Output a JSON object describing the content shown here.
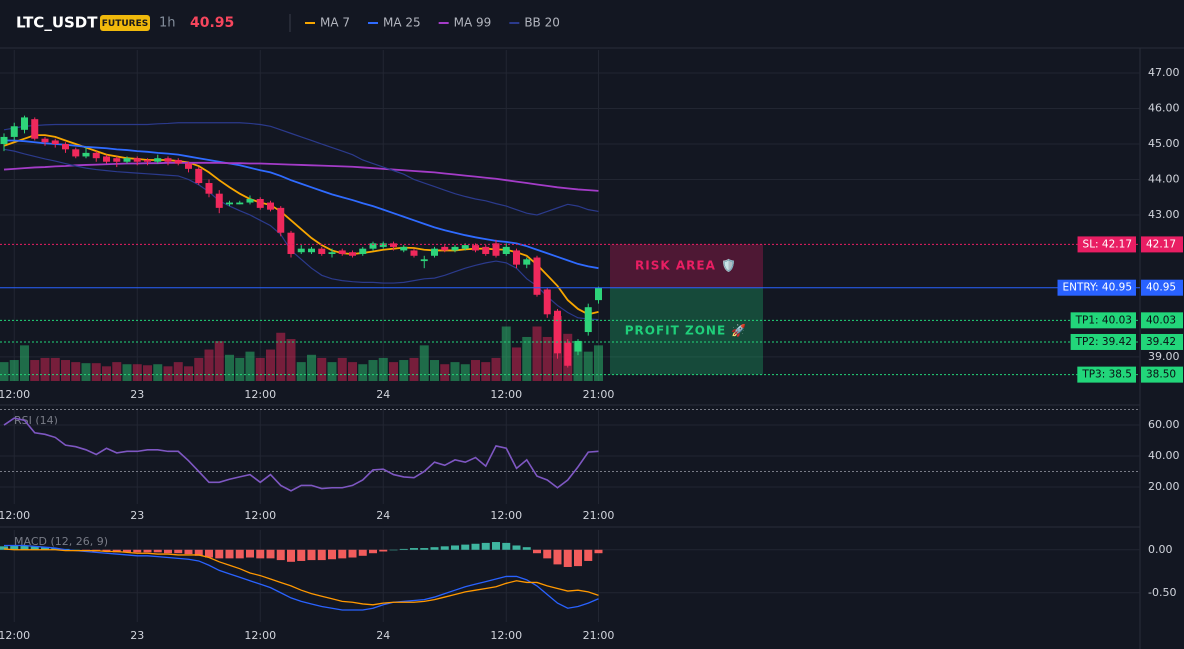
{
  "header": {
    "symbol": "LTC_USDT",
    "badge": "FUTURES",
    "interval": "1h",
    "price": 40.95
  },
  "chart_data": [
    {
      "type": "candlestick",
      "categories": [
        null,
        "12:00",
        null,
        null,
        null,
        null,
        null,
        null,
        null,
        null,
        null,
        null,
        null,
        "23",
        null,
        null,
        null,
        null,
        null,
        null,
        null,
        null,
        null,
        null,
        null,
        "12:00",
        null,
        null,
        null,
        null,
        null,
        null,
        null,
        null,
        null,
        null,
        null,
        "24",
        null,
        null,
        null,
        null,
        null,
        null,
        null,
        null,
        null,
        null,
        null,
        "12:00",
        null,
        null,
        null,
        null,
        null,
        null,
        null,
        null,
        "21:00"
      ],
      "open": [
        45.0,
        45.2,
        45.4,
        45.7,
        45.15,
        45.1,
        45.0,
        44.85,
        44.65,
        44.75,
        44.65,
        44.6,
        44.5,
        44.6,
        44.55,
        44.5,
        44.6,
        44.55,
        44.45,
        44.3,
        43.9,
        43.6,
        43.3,
        43.3,
        43.35,
        43.45,
        43.35,
        43.2,
        42.5,
        41.95,
        41.95,
        42.05,
        41.9,
        42.0,
        41.95,
        41.9,
        42.05,
        42.1,
        42.2,
        42.0,
        42.0,
        41.7,
        41.85,
        42.1,
        42.0,
        42.05,
        42.15,
        42.1,
        42.2,
        41.9,
        42.0,
        41.6,
        41.8,
        40.9,
        40.3,
        39.4,
        39.15,
        39.7,
        40.6
      ],
      "high": [
        45.3,
        45.6,
        45.8,
        45.75,
        45.2,
        45.15,
        45.05,
        44.9,
        44.9,
        44.8,
        44.7,
        44.65,
        44.65,
        44.65,
        44.6,
        44.7,
        44.65,
        44.6,
        44.5,
        44.35,
        44.0,
        43.7,
        43.4,
        43.4,
        43.55,
        43.5,
        43.4,
        43.25,
        42.55,
        42.15,
        42.1,
        42.1,
        42.05,
        42.05,
        42.0,
        42.1,
        42.25,
        42.25,
        42.25,
        42.15,
        42.05,
        41.85,
        42.1,
        42.15,
        42.15,
        42.2,
        42.2,
        42.15,
        42.3,
        42.2,
        42.05,
        41.8,
        41.85,
        40.95,
        40.35,
        39.5,
        39.5,
        40.5,
        40.98
      ],
      "low": [
        44.8,
        45.1,
        45.3,
        45.1,
        44.95,
        44.9,
        44.75,
        44.6,
        44.6,
        44.5,
        44.45,
        44.35,
        44.45,
        44.4,
        44.4,
        44.45,
        44.4,
        44.4,
        44.2,
        43.85,
        43.5,
        43.05,
        43.25,
        43.3,
        43.3,
        43.15,
        43.1,
        42.4,
        41.8,
        41.9,
        41.9,
        41.85,
        41.8,
        41.85,
        41.8,
        41.85,
        42.0,
        42.05,
        42.0,
        41.95,
        41.8,
        41.5,
        41.8,
        41.95,
        41.95,
        42.0,
        41.95,
        41.85,
        41.8,
        41.85,
        41.5,
        41.5,
        40.7,
        40.1,
        38.95,
        38.7,
        39.05,
        39.6,
        40.5
      ],
      "close": [
        45.2,
        45.5,
        45.75,
        45.15,
        45.05,
        45.0,
        44.85,
        44.65,
        44.75,
        44.6,
        44.5,
        44.5,
        44.6,
        44.5,
        44.5,
        44.6,
        44.5,
        44.45,
        44.3,
        43.9,
        43.6,
        43.2,
        43.35,
        43.35,
        43.45,
        43.2,
        43.15,
        42.5,
        41.9,
        42.05,
        42.05,
        41.9,
        41.95,
        41.9,
        41.85,
        42.05,
        42.2,
        42.2,
        42.1,
        42.1,
        41.85,
        41.75,
        42.05,
        42.0,
        42.1,
        42.15,
        42.0,
        41.9,
        41.85,
        42.1,
        41.6,
        41.75,
        40.75,
        40.2,
        39.1,
        38.75,
        39.45,
        40.4,
        40.95
      ],
      "volume": [
        18,
        20,
        34,
        20,
        22,
        22,
        20,
        18,
        17,
        17,
        14,
        18,
        16,
        16,
        15,
        16,
        14,
        18,
        14,
        22,
        30,
        38,
        25,
        22,
        28,
        22,
        30,
        46,
        40,
        18,
        25,
        22,
        18,
        22,
        18,
        16,
        20,
        22,
        18,
        20,
        22,
        34,
        20,
        16,
        18,
        16,
        20,
        18,
        22,
        52,
        32,
        42,
        52,
        42,
        62,
        45,
        38,
        28,
        34
      ],
      "up_color": "#2ed47a",
      "down_color": "#f0295c",
      "series": [
        {
          "name": "MA 7",
          "color": "#f7a600",
          "values": [
            44.95,
            45.05,
            45.15,
            45.25,
            45.25,
            45.2,
            45.1,
            45.0,
            44.9,
            44.8,
            44.7,
            44.65,
            44.6,
            44.58,
            44.55,
            44.55,
            44.55,
            44.52,
            44.48,
            44.38,
            44.2,
            43.98,
            43.78,
            43.6,
            43.45,
            43.35,
            43.28,
            43.1,
            42.85,
            42.6,
            42.35,
            42.15,
            42.0,
            41.92,
            41.9,
            41.93,
            41.97,
            42.02,
            42.05,
            42.08,
            42.07,
            42.02,
            42.0,
            42.0,
            42.0,
            42.03,
            42.05,
            42.05,
            42.03,
            42.02,
            41.95,
            41.85,
            41.6,
            41.3,
            41.0,
            40.6,
            40.35,
            40.2,
            40.27
          ]
        },
        {
          "name": "MA 25",
          "color": "#2f6bff",
          "values": [
            45.1,
            45.1,
            45.08,
            45.05,
            45.02,
            45.0,
            44.98,
            44.95,
            44.92,
            44.9,
            44.88,
            44.85,
            44.83,
            44.8,
            44.78,
            44.75,
            44.73,
            44.7,
            44.65,
            44.6,
            44.55,
            44.5,
            44.45,
            44.4,
            44.33,
            44.26,
            44.2,
            44.1,
            43.98,
            43.88,
            43.78,
            43.68,
            43.58,
            43.5,
            43.42,
            43.33,
            43.25,
            43.15,
            43.05,
            42.95,
            42.85,
            42.75,
            42.65,
            42.57,
            42.5,
            42.43,
            42.37,
            42.32,
            42.27,
            42.24,
            42.2,
            42.12,
            42.02,
            41.92,
            41.82,
            41.72,
            41.62,
            41.55,
            41.5
          ]
        },
        {
          "name": "MA 99",
          "color": "#a43cc8",
          "values": [
            44.28,
            44.3,
            44.32,
            44.34,
            44.35,
            44.37,
            44.38,
            44.4,
            44.41,
            44.42,
            44.43,
            44.44,
            44.45,
            44.45,
            44.46,
            44.46,
            44.47,
            44.47,
            44.47,
            44.47,
            44.47,
            44.47,
            44.46,
            44.46,
            44.45,
            44.45,
            44.44,
            44.43,
            44.42,
            44.41,
            44.4,
            44.39,
            44.38,
            44.37,
            44.36,
            44.34,
            44.32,
            44.3,
            44.28,
            44.26,
            44.24,
            44.22,
            44.2,
            44.17,
            44.14,
            44.11,
            44.08,
            44.05,
            44.02,
            43.98,
            43.94,
            43.9,
            43.86,
            43.82,
            43.78,
            43.75,
            43.72,
            43.7,
            43.68
          ]
        },
        {
          "name": "BB 20",
          "color": "#2b3a8c",
          "upper": [
            45.4,
            45.45,
            45.5,
            45.52,
            45.54,
            45.55,
            45.55,
            45.55,
            45.55,
            45.55,
            45.55,
            45.55,
            45.55,
            45.55,
            45.55,
            45.57,
            45.58,
            45.6,
            45.6,
            45.6,
            45.6,
            45.6,
            45.6,
            45.6,
            45.58,
            45.55,
            45.5,
            45.4,
            45.3,
            45.2,
            45.1,
            45.0,
            44.9,
            44.8,
            44.7,
            44.55,
            44.45,
            44.35,
            44.25,
            44.15,
            44.0,
            43.9,
            43.8,
            43.7,
            43.6,
            43.52,
            43.45,
            43.4,
            43.32,
            43.25,
            43.15,
            43.05,
            43.0,
            43.1,
            43.2,
            43.3,
            43.25,
            43.15,
            43.1
          ],
          "lower": [
            44.85,
            44.8,
            44.72,
            44.65,
            44.58,
            44.52,
            44.45,
            44.38,
            44.32,
            44.28,
            44.25,
            44.22,
            44.2,
            44.18,
            44.16,
            44.14,
            44.12,
            44.1,
            44.0,
            43.85,
            43.65,
            43.4,
            43.25,
            43.12,
            43.0,
            42.85,
            42.7,
            42.45,
            42.0,
            41.75,
            41.5,
            41.3,
            41.2,
            41.15,
            41.12,
            41.1,
            41.1,
            41.08,
            41.08,
            41.1,
            41.15,
            41.2,
            41.22,
            41.3,
            41.4,
            41.5,
            41.58,
            41.65,
            41.7,
            41.65,
            41.5,
            41.2,
            41.0,
            40.7,
            40.45,
            40.25,
            40.1,
            40.07,
            40.05
          ]
        }
      ],
      "levels": [
        {
          "name": "SL: 42.17",
          "value": 42.17,
          "color": "#e91e63",
          "text_color": "#ffffff",
          "style": "dotted"
        },
        {
          "name": "ENTRY: 40.95",
          "value": 40.95,
          "color": "#2962ff",
          "text_color": "#ffffff",
          "style": "solid"
        },
        {
          "name": "TP1: 40.03",
          "value": 40.03,
          "color": "#22d67a",
          "text_color": "#0b0e14",
          "style": "dotted"
        },
        {
          "name": "TP2: 39.42",
          "value": 39.42,
          "color": "#22d67a",
          "text_color": "#0b0e14",
          "style": "dotted"
        },
        {
          "name": "TP3: 38.5",
          "value": 38.5,
          "value_label": "38.50",
          "color": "#22d67a",
          "text_color": "#0b0e14",
          "style": "dotted"
        }
      ],
      "zones": [
        {
          "label": "RISK AREA 🛡️",
          "from": 42.17,
          "to": 40.95,
          "color": "#e91e63"
        },
        {
          "label": "PROFIT ZONE 🚀",
          "from": 40.95,
          "to": 38.5,
          "color": "#1fcf7a"
        }
      ],
      "ylim": [
        38.32,
        47.65
      ],
      "yticks": [
        {
          "value": 47,
          "label": "47.00"
        },
        {
          "value": 46,
          "label": "46.00"
        },
        {
          "value": 45,
          "label": "45.00"
        },
        {
          "value": 44,
          "label": "44.00"
        },
        {
          "value": 43,
          "label": "43.00"
        },
        {
          "value": 39,
          "label": "39.00"
        }
      ],
      "grid": true
    },
    {
      "type": "line",
      "label": "RSI (14)",
      "categories": [
        null,
        "12:00",
        null,
        null,
        null,
        null,
        null,
        null,
        null,
        null,
        null,
        null,
        null,
        "23",
        null,
        null,
        null,
        null,
        null,
        null,
        null,
        null,
        null,
        null,
        null,
        "12:00",
        null,
        null,
        null,
        null,
        null,
        null,
        null,
        null,
        null,
        null,
        null,
        "24",
        null,
        null,
        null,
        null,
        null,
        null,
        null,
        null,
        null,
        null,
        null,
        "12:00",
        null,
        null,
        null,
        null,
        null,
        null,
        null,
        null,
        "21:00"
      ],
      "series": [
        {
          "color": "#7e57c2",
          "values": [
            60,
            64.5,
            63,
            55,
            54,
            52,
            47,
            46,
            44,
            41,
            45,
            42,
            43,
            43,
            44,
            44,
            43,
            43,
            37,
            30,
            23,
            23,
            25,
            26.5,
            28,
            23,
            28,
            21,
            17.5,
            21,
            21,
            19,
            19.5,
            19.5,
            21,
            24.5,
            31,
            31.5,
            28,
            26.5,
            26,
            30,
            36,
            34,
            37.5,
            36,
            39,
            33.5,
            46.5,
            45,
            32,
            37.5,
            27,
            24.5,
            19.5,
            24.5,
            33,
            42.5,
            43
          ]
        }
      ],
      "levels": [
        70,
        30
      ],
      "ylim": [
        9,
        71
      ],
      "yticks": [
        {
          "value": 60,
          "label": "60.00"
        },
        {
          "value": 40,
          "label": "40.00"
        },
        {
          "value": 20,
          "label": "20.00"
        }
      ],
      "grid": true
    },
    {
      "type": "macd",
      "label": "MACD (12, 26, 9)",
      "categories": [
        null,
        "12:00",
        null,
        null,
        null,
        null,
        null,
        null,
        null,
        null,
        null,
        null,
        null,
        "23",
        null,
        null,
        null,
        null,
        null,
        null,
        null,
        null,
        null,
        null,
        null,
        "12:00",
        null,
        null,
        null,
        null,
        null,
        null,
        null,
        null,
        null,
        null,
        null,
        "24",
        null,
        null,
        null,
        null,
        null,
        null,
        null,
        null,
        null,
        null,
        null,
        "12:00",
        null,
        null,
        null,
        null,
        null,
        null,
        null,
        null,
        "21:00"
      ],
      "histogram": [
        0.04,
        0.05,
        0.05,
        0.04,
        0.03,
        0.02,
        0.01,
        0.0,
        -0.01,
        -0.02,
        -0.02,
        -0.03,
        -0.03,
        -0.03,
        -0.03,
        -0.03,
        -0.04,
        -0.04,
        -0.05,
        -0.07,
        -0.09,
        -0.1,
        -0.1,
        -0.1,
        -0.09,
        -0.1,
        -0.1,
        -0.12,
        -0.14,
        -0.13,
        -0.12,
        -0.12,
        -0.11,
        -0.1,
        -0.09,
        -0.07,
        -0.04,
        -0.02,
        0.0,
        0.01,
        0.02,
        0.02,
        0.03,
        0.04,
        0.05,
        0.06,
        0.07,
        0.08,
        0.09,
        0.08,
        0.05,
        0.03,
        -0.04,
        -0.1,
        -0.17,
        -0.2,
        -0.19,
        -0.13,
        -0.04
      ],
      "macd": [
        0.05,
        0.05,
        0.05,
        0.04,
        0.03,
        0.02,
        0.0,
        -0.01,
        -0.02,
        -0.03,
        -0.04,
        -0.05,
        -0.06,
        -0.07,
        -0.07,
        -0.08,
        -0.09,
        -0.1,
        -0.11,
        -0.13,
        -0.18,
        -0.24,
        -0.28,
        -0.32,
        -0.36,
        -0.4,
        -0.44,
        -0.5,
        -0.56,
        -0.6,
        -0.63,
        -0.66,
        -0.68,
        -0.7,
        -0.7,
        -0.7,
        -0.68,
        -0.64,
        -0.61,
        -0.6,
        -0.59,
        -0.58,
        -0.55,
        -0.51,
        -0.47,
        -0.43,
        -0.4,
        -0.37,
        -0.34,
        -0.31,
        -0.31,
        -0.35,
        -0.42,
        -0.52,
        -0.62,
        -0.68,
        -0.66,
        -0.62,
        -0.57
      ],
      "signal": [
        0.01,
        0.0,
        0.0,
        0.0,
        0.0,
        0.0,
        -0.01,
        -0.01,
        -0.01,
        -0.01,
        -0.02,
        -0.02,
        -0.03,
        -0.04,
        -0.04,
        -0.05,
        -0.05,
        -0.06,
        -0.06,
        -0.06,
        -0.09,
        -0.14,
        -0.18,
        -0.22,
        -0.27,
        -0.3,
        -0.34,
        -0.38,
        -0.42,
        -0.47,
        -0.51,
        -0.54,
        -0.57,
        -0.6,
        -0.61,
        -0.63,
        -0.64,
        -0.62,
        -0.61,
        -0.61,
        -0.61,
        -0.6,
        -0.58,
        -0.55,
        -0.52,
        -0.49,
        -0.47,
        -0.45,
        -0.43,
        -0.39,
        -0.36,
        -0.38,
        -0.38,
        -0.42,
        -0.45,
        -0.48,
        -0.47,
        -0.49,
        -0.53
      ],
      "colors": {
        "up": "#3fb5a0",
        "down": "#f25c5c",
        "macd": "#2962ff",
        "signal": "#ff9800"
      },
      "ylim": [
        -0.84,
        0.23
      ],
      "yticks": [
        {
          "value": 0,
          "label": "0.00"
        },
        {
          "value": -0.5,
          "label": "-0.50"
        }
      ],
      "grid": true
    }
  ]
}
